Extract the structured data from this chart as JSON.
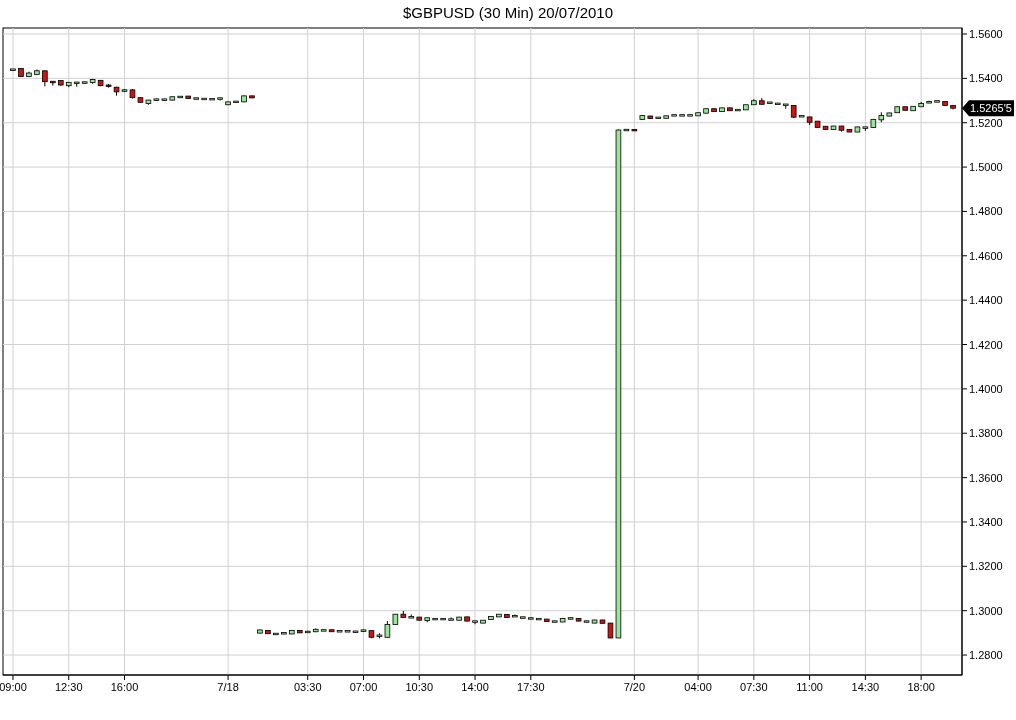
{
  "chart_data": {
    "type": "candlestick",
    "title": "$GBPUSD (30 Min)  20/07/2010",
    "categories": [
      "09:00",
      null,
      null,
      null,
      null,
      null,
      null,
      "12:30",
      null,
      null,
      null,
      null,
      null,
      null,
      "16:00",
      null,
      null,
      null,
      null,
      null,
      null,
      null,
      null,
      null,
      null,
      null,
      null,
      "7/18",
      null,
      null,
      null,
      null,
      null,
      null,
      null,
      null,
      null,
      "03:30",
      null,
      null,
      null,
      null,
      null,
      null,
      "07:00",
      null,
      null,
      null,
      null,
      null,
      null,
      "10:30",
      null,
      null,
      null,
      null,
      null,
      null,
      "14:00",
      null,
      null,
      null,
      null,
      null,
      null,
      "17:30",
      null,
      null,
      null,
      null,
      null,
      null,
      null,
      null,
      null,
      null,
      null,
      null,
      "7/20",
      null,
      null,
      null,
      null,
      null,
      null,
      null,
      "04:00",
      null,
      null,
      null,
      null,
      null,
      null,
      "07:30",
      null,
      null,
      null,
      null,
      null,
      null,
      "11:00",
      null,
      null,
      null,
      null,
      null,
      null,
      "14:30",
      null,
      null,
      null,
      null,
      null,
      null,
      "18:00",
      null,
      null,
      null,
      null
    ],
    "ohlc": [
      [
        1.5439,
        1.5441,
        1.5436,
        1.5439
      ],
      [
        1.5444,
        1.5446,
        1.5406,
        1.5408
      ],
      [
        1.5408,
        1.543,
        1.5406,
        1.5424
      ],
      [
        1.5418,
        1.544,
        1.5416,
        1.5434
      ],
      [
        1.5434,
        1.5436,
        1.5364,
        1.5385
      ],
      [
        1.5384,
        1.5385,
        1.5367,
        1.5383
      ],
      [
        1.539,
        1.5392,
        1.5366,
        1.537
      ],
      [
        1.5367,
        1.5384,
        1.536,
        1.5382
      ],
      [
        1.538,
        1.5381,
        1.5362,
        1.538
      ],
      [
        1.5381,
        1.5385,
        1.5376,
        1.5381
      ],
      [
        1.5381,
        1.5398,
        1.5376,
        1.5395
      ],
      [
        1.5391,
        1.5393,
        1.5364,
        1.5367
      ],
      [
        1.5367,
        1.5375,
        1.5358,
        1.5366
      ],
      [
        1.536,
        1.5362,
        1.5322,
        1.5339
      ],
      [
        1.5345,
        1.5352,
        1.5339,
        1.5345
      ],
      [
        1.5348,
        1.5352,
        1.5309,
        1.5313
      ],
      [
        1.5313,
        1.5314,
        1.5291,
        1.5292
      ],
      [
        1.5287,
        1.5303,
        1.5281,
        1.5302
      ],
      [
        1.5304,
        1.5309,
        1.5298,
        1.5304
      ],
      [
        1.5304,
        1.5308,
        1.5299,
        1.5304
      ],
      [
        1.5302,
        1.5318,
        1.53,
        1.5317
      ],
      [
        1.5316,
        1.532,
        1.5315,
        1.5316
      ],
      [
        1.532,
        1.5321,
        1.5307,
        1.5309
      ],
      [
        1.5309,
        1.5313,
        1.5304,
        1.5309
      ],
      [
        1.5307,
        1.531,
        1.5304,
        1.5307
      ],
      [
        1.5306,
        1.5307,
        1.5305,
        1.5306
      ],
      [
        1.5309,
        1.531,
        1.53,
        1.5309
      ],
      [
        1.5281,
        1.5295,
        1.5279,
        1.5294
      ],
      [
        1.5294,
        1.5298,
        1.529,
        1.5294
      ],
      [
        1.5294,
        1.5322,
        1.5292,
        1.5321
      ],
      [
        1.5321,
        1.5323,
        1.531,
        1.5312
      ],
      [
        1.2899,
        1.2915,
        1.2897,
        1.2913
      ],
      [
        1.2911,
        1.2912,
        1.2895,
        1.2896
      ],
      [
        1.2895,
        1.2898,
        1.289,
        1.2895
      ],
      [
        1.2898,
        1.2902,
        1.2894,
        1.2898
      ],
      [
        1.2895,
        1.2912,
        1.2894,
        1.2911
      ],
      [
        1.2911,
        1.2912,
        1.2899,
        1.29
      ],
      [
        1.2904,
        1.291,
        1.2902,
        1.2904
      ],
      [
        1.2905,
        1.292,
        1.2903,
        1.2916
      ],
      [
        1.2911,
        1.2913,
        1.291,
        1.2911
      ],
      [
        1.2914,
        1.2915,
        1.2904,
        1.2905
      ],
      [
        1.2907,
        1.2908,
        1.2906,
        1.2907
      ],
      [
        1.2907,
        1.2908,
        1.2906,
        1.2907
      ],
      [
        1.2905,
        1.2909,
        1.2901,
        1.2905
      ],
      [
        1.291,
        1.2915,
        1.2906,
        1.291
      ],
      [
        1.291,
        1.2911,
        1.2876,
        1.288
      ],
      [
        1.2887,
        1.2898,
        1.2875,
        1.2887
      ],
      [
        1.288,
        1.2953,
        1.2878,
        1.2938
      ],
      [
        1.2938,
        1.2985,
        1.2937,
        1.2984
      ],
      [
        1.2984,
        1.2999,
        1.2968,
        1.2969
      ],
      [
        1.297,
        1.2983,
        1.2969,
        1.297
      ],
      [
        1.2971,
        1.2972,
        1.2956,
        1.2957
      ],
      [
        1.2956,
        1.2969,
        1.2948,
        1.2968
      ],
      [
        1.2962,
        1.2966,
        1.2958,
        1.2962
      ],
      [
        1.2962,
        1.2966,
        1.2958,
        1.2962
      ],
      [
        1.296,
        1.297,
        1.2959,
        1.296
      ],
      [
        1.2957,
        1.2972,
        1.2956,
        1.2971
      ],
      [
        1.2972,
        1.2973,
        1.2952,
        1.2953
      ],
      [
        1.2951,
        1.2952,
        1.2939,
        1.2951
      ],
      [
        1.2944,
        1.2958,
        1.2943,
        1.2957
      ],
      [
        1.296,
        1.2975,
        1.2959,
        1.2974
      ],
      [
        1.2972,
        1.2985,
        1.2971,
        1.2984
      ],
      [
        1.2983,
        1.2984,
        1.2968,
        1.2969
      ],
      [
        1.2975,
        1.2983,
        1.2974,
        1.2975
      ],
      [
        1.2969,
        1.2973,
        1.2965,
        1.2969
      ],
      [
        1.2965,
        1.2969,
        1.2961,
        1.2965
      ],
      [
        1.2962,
        1.2963,
        1.2961,
        1.2962
      ],
      [
        1.2962,
        1.2963,
        1.295,
        1.2951
      ],
      [
        1.2951,
        1.2952,
        1.295,
        1.2951
      ],
      [
        1.2949,
        1.2966,
        1.2948,
        1.2965
      ],
      [
        1.2965,
        1.2969,
        1.2961,
        1.2965
      ],
      [
        1.2965,
        1.2966,
        1.2952,
        1.2953
      ],
      [
        1.2951,
        1.2955,
        1.2947,
        1.2951
      ],
      [
        1.2944,
        1.2959,
        1.2943,
        1.2958
      ],
      [
        1.2958,
        1.2959,
        1.2942,
        1.2943
      ],
      [
        1.2944,
        1.2945,
        1.2876,
        1.2877
      ],
      [
        1.2877,
        1.517,
        1.2876,
        1.5167
      ],
      [
        1.5167,
        1.5169,
        1.5166,
        1.5167
      ],
      [
        1.5169,
        1.517,
        1.5163,
        1.5164
      ],
      [
        1.5215,
        1.5234,
        1.5213,
        1.5232
      ],
      [
        1.523,
        1.5232,
        1.5218,
        1.5219
      ],
      [
        1.5222,
        1.5225,
        1.5219,
        1.5222
      ],
      [
        1.522,
        1.5232,
        1.5219,
        1.5231
      ],
      [
        1.5233,
        1.5234,
        1.5232,
        1.5233
      ],
      [
        1.5233,
        1.5236,
        1.523,
        1.5233
      ],
      [
        1.5233,
        1.5234,
        1.5232,
        1.5233
      ],
      [
        1.5231,
        1.5246,
        1.523,
        1.5245
      ],
      [
        1.5243,
        1.5264,
        1.5242,
        1.5263
      ],
      [
        1.5263,
        1.5264,
        1.5249,
        1.525
      ],
      [
        1.525,
        1.5268,
        1.5249,
        1.5267
      ],
      [
        1.5267,
        1.5268,
        1.5253,
        1.5254
      ],
      [
        1.5257,
        1.5258,
        1.5256,
        1.5257
      ],
      [
        1.5258,
        1.5282,
        1.5257,
        1.5281
      ],
      [
        1.5281,
        1.5306,
        1.528,
        1.5299
      ],
      [
        1.5299,
        1.5311,
        1.5282,
        1.5283
      ],
      [
        1.529,
        1.5294,
        1.5286,
        1.529
      ],
      [
        1.5285,
        1.5289,
        1.5281,
        1.5285
      ],
      [
        1.5281,
        1.5282,
        1.5263,
        1.5281
      ],
      [
        1.5278,
        1.5279,
        1.5221,
        1.5225
      ],
      [
        1.5229,
        1.523,
        1.5228,
        1.5229
      ],
      [
        1.5226,
        1.5227,
        1.519,
        1.5202
      ],
      [
        1.5207,
        1.5208,
        1.5177,
        1.5178
      ],
      [
        1.5184,
        1.5185,
        1.5169,
        1.517
      ],
      [
        1.5169,
        1.5186,
        1.5168,
        1.5185
      ],
      [
        1.5185,
        1.5186,
        1.516,
        1.5166
      ],
      [
        1.517,
        1.5171,
        1.5157,
        1.5158
      ],
      [
        1.5158,
        1.5182,
        1.5157,
        1.5181
      ],
      [
        1.5178,
        1.5179,
        1.5163,
        1.5178
      ],
      [
        1.5178,
        1.5216,
        1.5177,
        1.5215
      ],
      [
        1.5213,
        1.5247,
        1.5202,
        1.5232
      ],
      [
        1.523,
        1.5245,
        1.5229,
        1.5244
      ],
      [
        1.5245,
        1.5273,
        1.5244,
        1.5272
      ],
      [
        1.5272,
        1.5273,
        1.5255,
        1.5256
      ],
      [
        1.5254,
        1.5275,
        1.5253,
        1.5274
      ],
      [
        1.5272,
        1.5294,
        1.5271,
        1.5287
      ],
      [
        1.5292,
        1.5299,
        1.5288,
        1.5292
      ],
      [
        1.5296,
        1.5299,
        1.5293,
        1.5296
      ],
      [
        1.5296,
        1.5297,
        1.5277,
        1.5278
      ],
      [
        1.5278,
        1.5279,
        1.526,
        1.52655
      ]
    ],
    "colors": [
      "#98e698",
      "#cc1414",
      "#98e698",
      "#98e698",
      "#cc1414",
      "#cc1414",
      "#cc1414",
      "#98e698",
      "#98e698",
      "#98e698",
      "#98e698",
      "#cc1414",
      "#cc1414",
      "#cc1414",
      "#98e698",
      "#cc1414",
      "#cc1414",
      "#98e698",
      "#98e698",
      "#98e698",
      "#98e698",
      "#98e698",
      "#cc1414",
      "#98e698",
      "#98e698",
      "#98e698",
      "#98e698",
      "#98e698",
      "#98e698",
      "#98e698",
      "#cc1414",
      "#98e698",
      "#cc1414",
      "#98e698",
      "#98e698",
      "#98e698",
      "#cc1414",
      "#98e698",
      "#98e698",
      "#98e698",
      "#cc1414",
      "#98e698",
      "#98e698",
      "#98e698",
      "#98e698",
      "#cc1414",
      "#98e698",
      "#98e698",
      "#98e698",
      "#cc1414",
      "#98e698",
      "#cc1414",
      "#98e698",
      "#98e698",
      "#98e698",
      "#98e698",
      "#98e698",
      "#cc1414",
      "#98e698",
      "#98e698",
      "#98e698",
      "#98e698",
      "#cc1414",
      "#98e698",
      "#98e698",
      "#98e698",
      "#98e698",
      "#cc1414",
      "#98e698",
      "#98e698",
      "#98e698",
      "#cc1414",
      "#98e698",
      "#98e698",
      "#cc1414",
      "#cc1414",
      "#98e698",
      "#98e698",
      "#cc1414",
      "#98e698",
      "#cc1414",
      "#98e698",
      "#98e698",
      "#98e698",
      "#98e698",
      "#98e698",
      "#98e698",
      "#98e698",
      "#cc1414",
      "#98e698",
      "#cc1414",
      "#98e698",
      "#98e698",
      "#98e698",
      "#cc1414",
      "#98e698",
      "#98e698",
      "#98e698",
      "#cc1414",
      "#98e698",
      "#cc1414",
      "#cc1414",
      "#cc1414",
      "#98e698",
      "#cc1414",
      "#cc1414",
      "#98e698",
      "#98e698",
      "#98e698",
      "#98e698",
      "#98e698",
      "#98e698",
      "#cc1414",
      "#98e698",
      "#98e698",
      "#98e698",
      "#98e698",
      "#cc1414",
      "#cc1414"
    ],
    "ylim": [
      1.271,
      1.5627
    ],
    "yticks": [
      {
        "value": 1.28,
        "label": "1.2800"
      },
      {
        "value": 1.3,
        "label": "1.3000"
      },
      {
        "value": 1.32,
        "label": "1.3200"
      },
      {
        "value": 1.34,
        "label": "1.3400"
      },
      {
        "value": 1.36,
        "label": "1.3600"
      },
      {
        "value": 1.38,
        "label": "1.3800"
      },
      {
        "value": 1.4,
        "label": "1.4000"
      },
      {
        "value": 1.42,
        "label": "1.4200"
      },
      {
        "value": 1.44,
        "label": "1.4400"
      },
      {
        "value": 1.46,
        "label": "1.4600"
      },
      {
        "value": 1.48,
        "label": "1.4800"
      },
      {
        "value": 1.5,
        "label": "1.5000"
      },
      {
        "value": 1.52,
        "label": "1.5200"
      },
      {
        "value": 1.54,
        "label": "1.5400"
      },
      {
        "value": 1.56,
        "label": "1.5600"
      }
    ],
    "annotations": [
      "1.5265'5"
    ],
    "grid": true
  }
}
